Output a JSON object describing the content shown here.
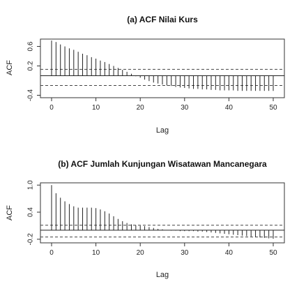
{
  "chart_data": [
    {
      "type": "bar",
      "title": "(a) ACF Nilai Kurs",
      "xlabel": "Lag",
      "ylabel": "ACF",
      "xlim": [
        0,
        50
      ],
      "ylim": [
        -0.45,
        0.75
      ],
      "xticks": [
        "0",
        "10",
        "20",
        "30",
        "40",
        "50"
      ],
      "yticks": [
        "-0.4",
        "0.2",
        "0.6"
      ],
      "ytick_values": [
        -0.4,
        0.2,
        0.6
      ],
      "ci_bounds": [
        0.13,
        -0.2
      ],
      "lags": [
        0,
        1,
        2,
        3,
        4,
        5,
        6,
        7,
        8,
        9,
        10,
        11,
        12,
        13,
        14,
        15,
        16,
        17,
        18,
        19,
        20,
        21,
        22,
        23,
        24,
        25,
        26,
        27,
        28,
        29,
        30,
        31,
        32,
        33,
        34,
        35,
        36,
        37,
        38,
        39,
        40,
        41,
        42,
        43,
        44,
        45,
        46,
        47,
        48,
        49,
        50
      ],
      "values": [
        0.72,
        0.69,
        0.64,
        0.6,
        0.56,
        0.53,
        0.49,
        0.45,
        0.42,
        0.38,
        0.35,
        0.31,
        0.28,
        0.24,
        0.2,
        0.16,
        0.12,
        0.08,
        0.04,
        -0.01,
        -0.04,
        -0.08,
        -0.11,
        -0.14,
        -0.16,
        -0.18,
        -0.2,
        -0.21,
        -0.23,
        -0.24,
        -0.25,
        -0.26,
        -0.27,
        -0.27,
        -0.28,
        -0.28,
        -0.29,
        -0.29,
        -0.3,
        -0.3,
        -0.3,
        -0.3,
        -0.31,
        -0.31,
        -0.31,
        -0.31,
        -0.31,
        -0.31,
        -0.31,
        -0.31,
        -0.31
      ]
    },
    {
      "type": "bar",
      "title": "(b) ACF Jumlah Kunjungan Wisatawan Mancanegara",
      "xlabel": "Lag",
      "ylabel": "ACF",
      "xlim": [
        0,
        50
      ],
      "ylim": [
        -0.28,
        1.05
      ],
      "xticks": [
        "0",
        "10",
        "20",
        "30",
        "40",
        "50"
      ],
      "yticks": [
        "-0.2",
        "0.4",
        "1.0"
      ],
      "ytick_values": [
        -0.2,
        0.4,
        1.0
      ],
      "ci_bounds": [
        0.11,
        -0.15
      ],
      "lags": [
        0,
        1,
        2,
        3,
        4,
        5,
        6,
        7,
        8,
        9,
        10,
        11,
        12,
        13,
        14,
        15,
        16,
        17,
        18,
        19,
        20,
        21,
        22,
        23,
        24,
        25,
        26,
        27,
        28,
        29,
        30,
        31,
        32,
        33,
        34,
        35,
        36,
        37,
        38,
        39,
        40,
        41,
        42,
        43,
        44,
        45,
        46,
        47,
        48,
        49,
        50
      ],
      "values": [
        1.0,
        0.82,
        0.72,
        0.64,
        0.58,
        0.53,
        0.5,
        0.5,
        0.5,
        0.5,
        0.49,
        0.46,
        0.42,
        0.37,
        0.31,
        0.25,
        0.2,
        0.16,
        0.13,
        0.11,
        0.1,
        0.09,
        0.07,
        0.05,
        0.03,
        0.02,
        0.0,
        -0.01,
        -0.01,
        -0.02,
        -0.02,
        -0.02,
        -0.02,
        -0.03,
        -0.03,
        -0.04,
        -0.05,
        -0.06,
        -0.07,
        -0.08,
        -0.09,
        -0.1,
        -0.11,
        -0.12,
        -0.13,
        -0.14,
        -0.15,
        -0.16,
        -0.17,
        -0.18,
        -0.19
      ]
    }
  ]
}
